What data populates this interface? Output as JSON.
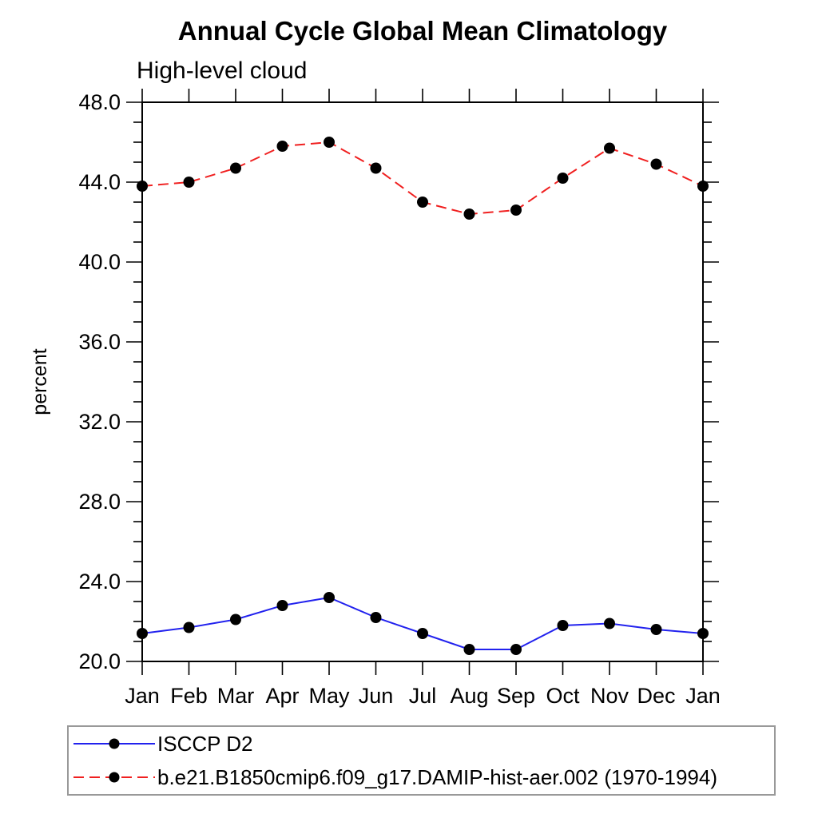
{
  "page_title": "Annual Cycle Global Mean Climatology",
  "chart_data": {
    "type": "line",
    "title": "Annual Cycle Global Mean Climatology",
    "subtitle": "High-level cloud",
    "ylabel": "percent",
    "xlabel": "",
    "categories": [
      "Jan",
      "Feb",
      "Mar",
      "Apr",
      "May",
      "Jun",
      "Jul",
      "Aug",
      "Sep",
      "Oct",
      "Nov",
      "Dec",
      "Jan"
    ],
    "series": [
      {
        "name": "ISCCP D2",
        "line_color": "#2222ee",
        "line_style": "solid",
        "marker": "filled-circle",
        "marker_color": "#000000",
        "values": [
          21.4,
          21.7,
          22.1,
          22.8,
          23.2,
          22.2,
          21.4,
          20.6,
          20.6,
          21.8,
          21.9,
          21.6,
          21.4
        ]
      },
      {
        "name": "b.e21.B1850cmip6.f09_g17.DAMIP-hist-aer.002 (1970-1994)",
        "line_color": "#f02020",
        "line_style": "dashed",
        "marker": "filled-circle",
        "marker_color": "#000000",
        "values": [
          43.8,
          44.0,
          44.7,
          45.8,
          46.0,
          44.7,
          43.0,
          42.4,
          42.6,
          44.2,
          45.7,
          44.9,
          43.8
        ]
      }
    ],
    "ylim": [
      20.0,
      48.0
    ],
    "ytick_major": [
      20.0,
      24.0,
      28.0,
      32.0,
      36.0,
      40.0,
      44.0,
      48.0
    ],
    "ytick_minor_step": 1.0,
    "ytick_label_format": "one-decimal",
    "grid": false,
    "frame": "box-with-outward-ticks",
    "legend_position": "bottom-left-box",
    "axis_color": "#000000",
    "text_color": "#000000"
  }
}
